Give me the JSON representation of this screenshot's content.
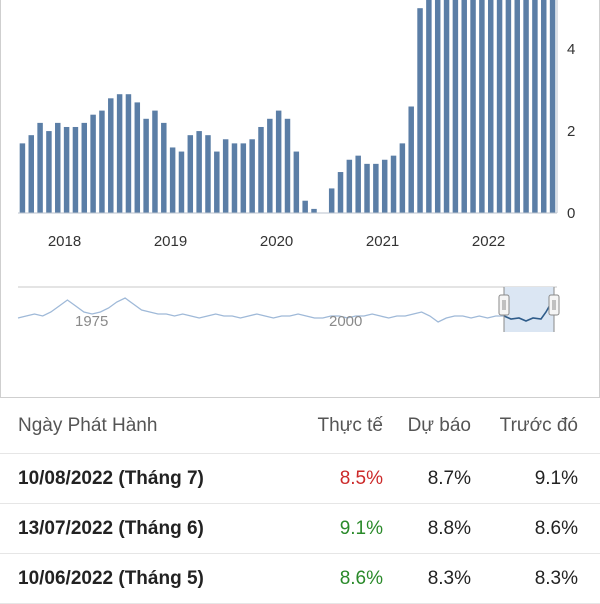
{
  "chart_data": {
    "type": "bar",
    "x_tick_labels": [
      "2018",
      "2019",
      "2020",
      "2021",
      "2022"
    ],
    "y_tick_labels": [
      "0",
      "2",
      "4"
    ],
    "ylim": [
      0,
      5.2
    ],
    "bar_color": "#5b7ea6",
    "series": [
      {
        "values": [
          1.7,
          1.9,
          2.2,
          2.0,
          2.2,
          2.1,
          2.1,
          2.2,
          2.4,
          2.5,
          2.8,
          2.9,
          2.9,
          2.7,
          2.3,
          2.5,
          2.2,
          1.6,
          1.5,
          1.9,
          2.0,
          1.9,
          1.5,
          1.8,
          1.7,
          1.7,
          1.8,
          2.1,
          2.3,
          2.5,
          2.3,
          1.5,
          0.3,
          0.1,
          0.0,
          0.6,
          1.0,
          1.3,
          1.4,
          1.2,
          1.2,
          1.3,
          1.4,
          1.7,
          2.6,
          5.0,
          5.4,
          5.4,
          5.4,
          5.4,
          5.4,
          5.4,
          5.4,
          5.4,
          5.4,
          5.4,
          5.4,
          5.4,
          5.4,
          5.4,
          5.4
        ]
      }
    ],
    "navigator": {
      "labels": [
        "1975",
        "2000"
      ],
      "line_color": "#9fb9d8",
      "selected_line_color": "#2f5c8a",
      "selected_fill": "#dbe6f3"
    }
  },
  "table": {
    "headers": {
      "date": "Ngày Phát Hành",
      "actual": "Thực tế",
      "forecast": "Dự báo",
      "previous": "Trước đó"
    },
    "rows": [
      {
        "date": "10/08/2022 (Tháng 7)",
        "actual": "8.5%",
        "actual_color": "#cc2a2a",
        "forecast": "8.7%",
        "previous": "9.1%"
      },
      {
        "date": "13/07/2022 (Tháng 6)",
        "actual": "9.1%",
        "actual_color": "#2a8a2a",
        "forecast": "8.8%",
        "previous": "8.6%"
      },
      {
        "date": "10/06/2022 (Tháng 5)",
        "actual": "8.6%",
        "actual_color": "#2a8a2a",
        "forecast": "8.3%",
        "previous": "8.3%"
      }
    ]
  }
}
